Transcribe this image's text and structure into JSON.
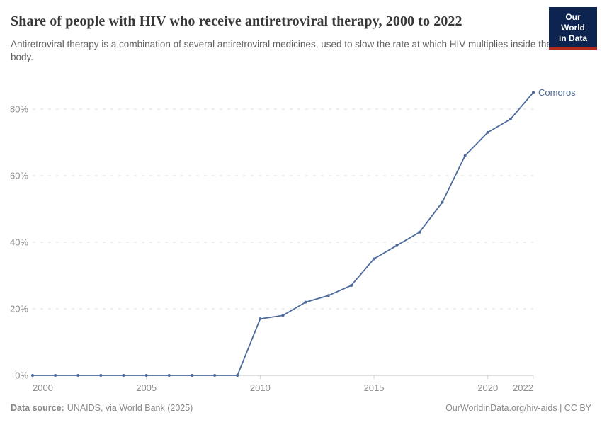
{
  "header": {
    "title": "Share of people with HIV who receive antiretroviral therapy, 2000 to 2022",
    "subtitle": "Antiretroviral therapy is a combination of several antiretroviral medicines, used to slow the rate at which HIV multiplies inside the body.",
    "logo": {
      "line1": "Our World",
      "line2": "in Data",
      "bg_color": "#0d2450",
      "stripe_color": "#b0291c"
    }
  },
  "chart_data": {
    "type": "line",
    "title": "Share of people with HIV who receive antiretroviral therapy, 2000 to 2022",
    "x": [
      2000,
      2001,
      2002,
      2003,
      2004,
      2005,
      2006,
      2007,
      2008,
      2009,
      2010,
      2011,
      2012,
      2013,
      2014,
      2015,
      2016,
      2017,
      2018,
      2019,
      2020,
      2021,
      2022
    ],
    "series": [
      {
        "name": "Comoros",
        "color": "#4C6A9C",
        "values": [
          0,
          0,
          0,
          0,
          0,
          0,
          0,
          0,
          0,
          0,
          17,
          18,
          22,
          24,
          27,
          35,
          39,
          43,
          52,
          66,
          73,
          77,
          85
        ]
      }
    ],
    "x_ticks": [
      2000,
      2005,
      2010,
      2015,
      2020,
      2022
    ],
    "y_ticks": [
      0,
      20,
      40,
      60,
      80
    ],
    "y_tick_format": "{v}%",
    "xlim": [
      2000,
      2022
    ],
    "ylim": [
      0,
      85
    ],
    "grid": "horizontal-dashed",
    "gridline_color": "#dcdcdc",
    "axis_color": "#bdbdbd",
    "tick_label_color": "#8e8e8e",
    "legend_position": "end-of-line-label"
  },
  "footer": {
    "datasource_label": "Data source:",
    "datasource_text": "UNAIDS, via World Bank (2025)",
    "license_text": "OurWorldinData.org/hiv-aids | CC BY"
  }
}
